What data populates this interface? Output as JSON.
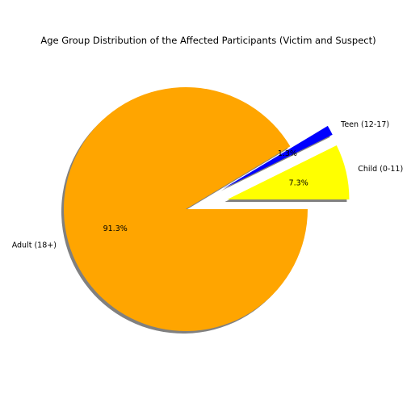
{
  "chart_data": {
    "type": "pie",
    "title": "Age Group Distribution of the Affected Participants (Victim and Suspect)",
    "categories": [
      "Child (0-11)",
      "Teen (12-17)",
      "Adult (18+)"
    ],
    "values": [
      7.3,
      1.3,
      91.3
    ],
    "percent_labels": [
      "7.3%",
      "1.3%",
      "91.3%"
    ],
    "colors": [
      "#ffff00",
      "#0000ff",
      "#ffa500"
    ],
    "explode": [
      0.35,
      0.35,
      0
    ],
    "start_angle_deg": 0,
    "direction": "counterclockwise",
    "shadow": true,
    "legend": "none"
  }
}
